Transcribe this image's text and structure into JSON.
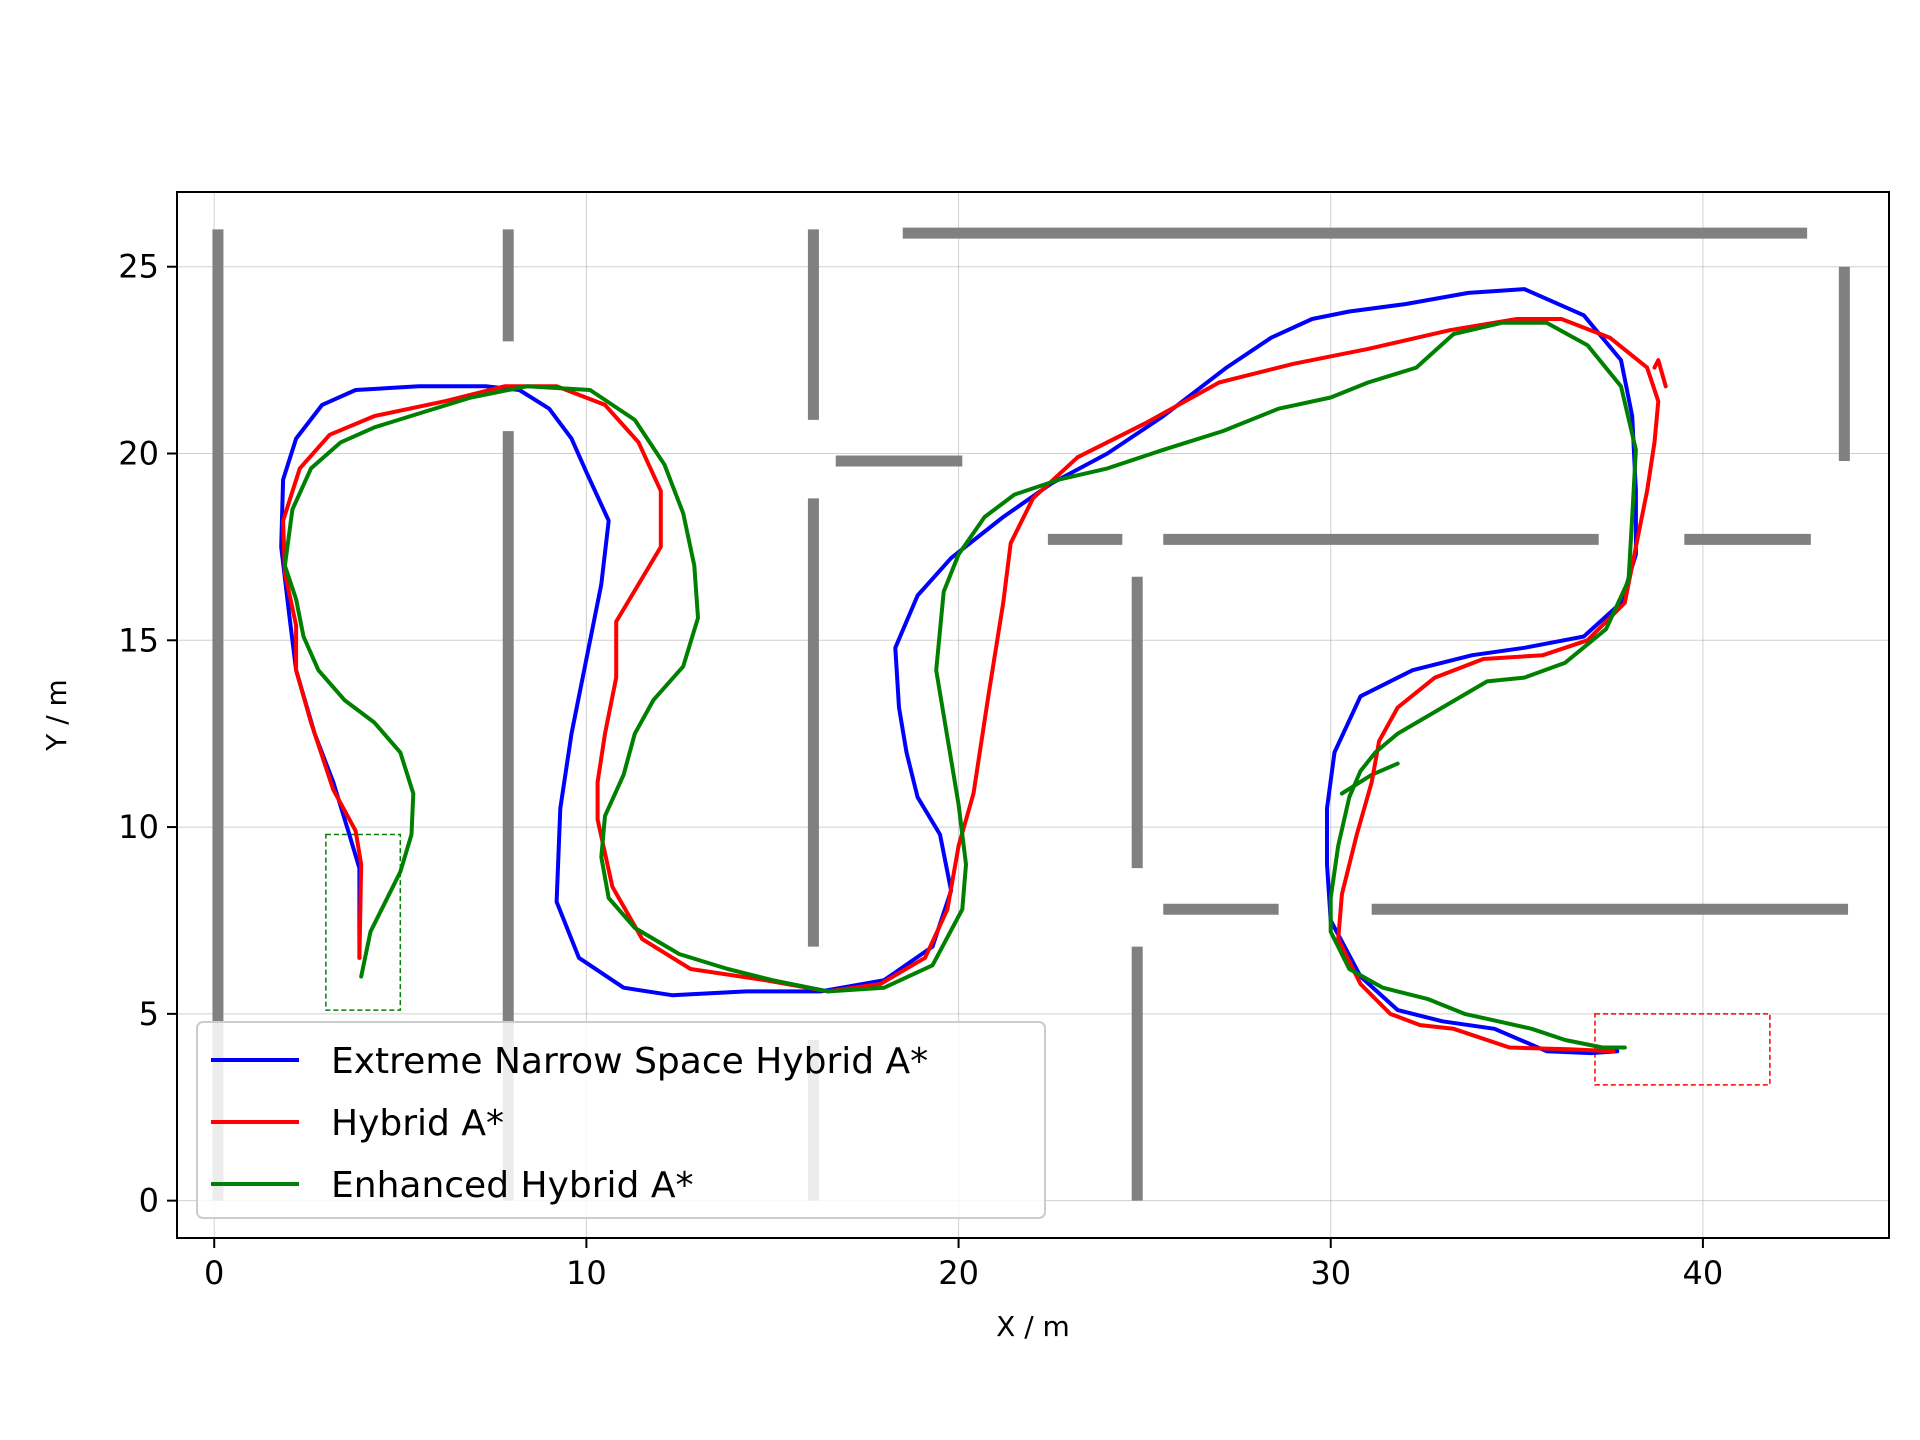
{
  "chart_data": {
    "type": "line",
    "title": "",
    "xlabel": "X / m",
    "ylabel": "Y / m",
    "xlim": [
      -1,
      45
    ],
    "ylim": [
      -1,
      27
    ],
    "xticks": [
      "0",
      "10",
      "20",
      "30",
      "40"
    ],
    "yticks": [
      "0",
      "5",
      "10",
      "15",
      "20",
      "25"
    ],
    "grid": true,
    "legend_position": "lower-left",
    "obstacle_color": "#808080",
    "walls": [
      [
        [
          0.1,
          0
        ],
        [
          0.1,
          26
        ]
      ],
      [
        [
          7.9,
          0
        ],
        [
          7.9,
          20.6
        ]
      ],
      [
        [
          7.9,
          23
        ],
        [
          7.9,
          26
        ]
      ],
      [
        [
          16.1,
          0
        ],
        [
          16.1,
          4.3
        ]
      ],
      [
        [
          16.1,
          6.8
        ],
        [
          16.1,
          18.8
        ]
      ],
      [
        [
          16.1,
          20.9
        ],
        [
          16.1,
          26
        ]
      ],
      [
        [
          18.5,
          25.9
        ],
        [
          42.8,
          25.9
        ]
      ],
      [
        [
          16.7,
          19.8
        ],
        [
          20.1,
          19.8
        ]
      ],
      [
        [
          22.4,
          17.7
        ],
        [
          24.4,
          17.7
        ]
      ],
      [
        [
          25.5,
          17.7
        ],
        [
          37.2,
          17.7
        ]
      ],
      [
        [
          39.5,
          17.7
        ],
        [
          42.9,
          17.7
        ]
      ],
      [
        [
          43.8,
          19.8
        ],
        [
          43.8,
          25
        ]
      ],
      [
        [
          24.8,
          8.9
        ],
        [
          24.8,
          16.7
        ]
      ],
      [
        [
          24.8,
          0
        ],
        [
          24.8,
          6.8
        ]
      ],
      [
        [
          25.5,
          7.8
        ],
        [
          28.6,
          7.8
        ]
      ],
      [
        [
          31.1,
          7.8
        ],
        [
          43.9,
          7.8
        ]
      ]
    ],
    "target_zones": [
      {
        "x": [
          3.0,
          5.0
        ],
        "y": [
          5.1,
          9.8
        ],
        "color": "#008000"
      },
      {
        "x": [
          37.1,
          41.8
        ],
        "y": [
          3.1,
          5.0
        ],
        "color": "#ff0000"
      }
    ],
    "series": [
      {
        "name": "Extreme Narrow Space Hybrid A*",
        "color": "#0000ff",
        "points": [
          [
            3.9,
            6.5
          ],
          [
            3.9,
            8.9
          ],
          [
            3.6,
            9.9
          ],
          [
            3.2,
            11.2
          ],
          [
            2.7,
            12.5
          ],
          [
            2.2,
            14.2
          ],
          [
            2.0,
            15.8
          ],
          [
            1.8,
            17.5
          ],
          [
            1.85,
            19.3
          ],
          [
            2.2,
            20.4
          ],
          [
            2.9,
            21.3
          ],
          [
            3.8,
            21.7
          ],
          [
            5.5,
            21.8
          ],
          [
            7.3,
            21.8
          ],
          [
            8.2,
            21.7
          ],
          [
            9.0,
            21.2
          ],
          [
            9.6,
            20.4
          ],
          [
            10.0,
            19.5
          ],
          [
            10.6,
            18.2
          ],
          [
            10.4,
            16.5
          ],
          [
            10.0,
            14.5
          ],
          [
            9.6,
            12.5
          ],
          [
            9.3,
            10.5
          ],
          [
            9.2,
            8.0
          ],
          [
            9.8,
            6.5
          ],
          [
            11.0,
            5.7
          ],
          [
            12.3,
            5.5
          ],
          [
            14.3,
            5.6
          ],
          [
            16.3,
            5.6
          ],
          [
            18.0,
            5.9
          ],
          [
            19.3,
            6.8
          ],
          [
            19.8,
            8.3
          ],
          [
            19.5,
            9.8
          ],
          [
            18.9,
            10.8
          ],
          [
            18.6,
            12.0
          ],
          [
            18.4,
            13.2
          ],
          [
            18.3,
            14.8
          ],
          [
            18.9,
            16.2
          ],
          [
            19.8,
            17.2
          ],
          [
            21.2,
            18.3
          ],
          [
            22.5,
            19.2
          ],
          [
            24.0,
            20.0
          ],
          [
            25.5,
            21.0
          ],
          [
            27.2,
            22.3
          ],
          [
            28.4,
            23.1
          ],
          [
            29.5,
            23.6
          ],
          [
            30.5,
            23.8
          ],
          [
            32.0,
            24.0
          ],
          [
            33.7,
            24.3
          ],
          [
            35.2,
            24.4
          ],
          [
            36.8,
            23.7
          ],
          [
            37.8,
            22.5
          ],
          [
            38.1,
            21.0
          ],
          [
            38.2,
            19.0
          ],
          [
            38.2,
            17.3
          ],
          [
            37.8,
            16.0
          ],
          [
            36.8,
            15.1
          ],
          [
            35.2,
            14.8
          ],
          [
            33.8,
            14.6
          ],
          [
            32.2,
            14.2
          ],
          [
            30.8,
            13.5
          ],
          [
            30.1,
            12.0
          ],
          [
            29.9,
            10.5
          ],
          [
            29.9,
            9.0
          ],
          [
            30.0,
            7.5
          ],
          [
            30.8,
            6.0
          ],
          [
            31.8,
            5.1
          ],
          [
            33.0,
            4.8
          ],
          [
            34.4,
            4.6
          ],
          [
            35.8,
            4.0
          ],
          [
            37.0,
            3.95
          ],
          [
            37.7,
            4.0
          ]
        ]
      },
      {
        "name": "Hybrid A*",
        "color": "#ff0000",
        "points": [
          [
            3.9,
            6.5
          ],
          [
            3.95,
            9.0
          ],
          [
            3.8,
            9.9
          ],
          [
            3.2,
            11.0
          ],
          [
            2.6,
            12.8
          ],
          [
            2.2,
            14.2
          ],
          [
            2.2,
            15.4
          ],
          [
            1.9,
            16.8
          ],
          [
            1.85,
            18.2
          ],
          [
            2.3,
            19.6
          ],
          [
            3.1,
            20.5
          ],
          [
            4.3,
            21.0
          ],
          [
            6.2,
            21.4
          ],
          [
            7.8,
            21.8
          ],
          [
            9.2,
            21.8
          ],
          [
            10.5,
            21.3
          ],
          [
            11.4,
            20.3
          ],
          [
            12.0,
            19.0
          ],
          [
            12.0,
            17.5
          ],
          [
            11.4,
            16.5
          ],
          [
            10.8,
            15.5
          ],
          [
            10.8,
            14.0
          ],
          [
            10.5,
            12.5
          ],
          [
            10.3,
            11.2
          ],
          [
            10.3,
            10.2
          ],
          [
            10.7,
            8.4
          ],
          [
            11.5,
            7.0
          ],
          [
            12.8,
            6.2
          ],
          [
            14.8,
            5.9
          ],
          [
            16.5,
            5.6
          ],
          [
            17.9,
            5.8
          ],
          [
            19.1,
            6.5
          ],
          [
            19.7,
            7.8
          ],
          [
            20.0,
            9.5
          ],
          [
            20.4,
            10.9
          ],
          [
            20.8,
            13.5
          ],
          [
            21.2,
            16.0
          ],
          [
            21.4,
            17.6
          ],
          [
            22.0,
            18.8
          ],
          [
            23.2,
            19.9
          ],
          [
            25.0,
            20.8
          ],
          [
            27.0,
            21.9
          ],
          [
            29.0,
            22.4
          ],
          [
            31.0,
            22.8
          ],
          [
            33.2,
            23.3
          ],
          [
            35.0,
            23.6
          ],
          [
            36.2,
            23.6
          ],
          [
            37.5,
            23.1
          ],
          [
            38.5,
            22.3
          ],
          [
            38.8,
            21.4
          ],
          [
            38.7,
            20.3
          ],
          [
            38.5,
            19.0
          ],
          [
            38.2,
            17.5
          ],
          [
            37.9,
            16.0
          ],
          [
            36.9,
            15.0
          ],
          [
            35.7,
            14.6
          ],
          [
            34.1,
            14.5
          ],
          [
            32.8,
            14.0
          ],
          [
            31.8,
            13.2
          ],
          [
            31.3,
            12.3
          ],
          [
            31.1,
            11.2
          ],
          [
            30.7,
            9.8
          ],
          [
            30.3,
            8.2
          ],
          [
            30.2,
            7.0
          ],
          [
            30.8,
            5.8
          ],
          [
            31.6,
            5.0
          ],
          [
            32.4,
            4.7
          ],
          [
            33.3,
            4.6
          ],
          [
            34.8,
            4.1
          ],
          [
            36.4,
            4.05
          ],
          [
            37.6,
            4.0
          ]
        ]
      },
      {
        "name": "Enhanced Hybrid A*",
        "color": "#008000",
        "points": [
          [
            3.95,
            6.0
          ],
          [
            4.2,
            7.2
          ],
          [
            4.6,
            8.0
          ],
          [
            5.0,
            8.8
          ],
          [
            5.3,
            9.8
          ],
          [
            5.35,
            10.9
          ],
          [
            5.0,
            12.0
          ],
          [
            4.3,
            12.8
          ],
          [
            3.5,
            13.4
          ],
          [
            2.8,
            14.2
          ],
          [
            2.4,
            15.1
          ],
          [
            2.2,
            16.1
          ],
          [
            1.9,
            17.0
          ],
          [
            2.1,
            18.5
          ],
          [
            2.6,
            19.6
          ],
          [
            3.4,
            20.3
          ],
          [
            4.3,
            20.7
          ],
          [
            5.6,
            21.1
          ],
          [
            6.9,
            21.5
          ],
          [
            8.4,
            21.8
          ],
          [
            10.1,
            21.7
          ],
          [
            11.3,
            20.9
          ],
          [
            12.1,
            19.7
          ],
          [
            12.6,
            18.4
          ],
          [
            12.9,
            17.0
          ],
          [
            13.0,
            15.6
          ],
          [
            12.6,
            14.3
          ],
          [
            11.8,
            13.4
          ],
          [
            11.3,
            12.5
          ],
          [
            11.0,
            11.4
          ],
          [
            10.5,
            10.3
          ],
          [
            10.4,
            9.2
          ],
          [
            10.6,
            8.1
          ],
          [
            11.3,
            7.3
          ],
          [
            12.5,
            6.6
          ],
          [
            13.8,
            6.2
          ],
          [
            15.0,
            5.9
          ],
          [
            16.5,
            5.6
          ],
          [
            18.0,
            5.7
          ],
          [
            19.3,
            6.3
          ],
          [
            20.1,
            7.8
          ],
          [
            20.2,
            9.0
          ],
          [
            20.0,
            10.6
          ],
          [
            19.7,
            12.4
          ],
          [
            19.4,
            14.2
          ],
          [
            19.6,
            16.3
          ],
          [
            20.0,
            17.3
          ],
          [
            20.7,
            18.3
          ],
          [
            21.5,
            18.9
          ],
          [
            22.7,
            19.3
          ],
          [
            24.0,
            19.6
          ],
          [
            25.5,
            20.1
          ],
          [
            27.1,
            20.6
          ],
          [
            28.6,
            21.2
          ],
          [
            30.0,
            21.5
          ],
          [
            31.0,
            21.9
          ],
          [
            32.3,
            22.3
          ],
          [
            33.3,
            23.2
          ],
          [
            34.6,
            23.5
          ],
          [
            35.8,
            23.5
          ],
          [
            36.9,
            22.9
          ],
          [
            37.8,
            21.8
          ],
          [
            38.2,
            20.1
          ],
          [
            38.1,
            18.3
          ],
          [
            38.0,
            16.6
          ],
          [
            37.4,
            15.3
          ],
          [
            36.3,
            14.4
          ],
          [
            35.2,
            14.0
          ],
          [
            34.2,
            13.9
          ],
          [
            33.0,
            13.2
          ],
          [
            31.8,
            12.5
          ],
          [
            31.2,
            12.0
          ],
          [
            30.8,
            11.5
          ],
          [
            30.5,
            10.8
          ],
          [
            30.2,
            9.5
          ],
          [
            30.0,
            8.1
          ],
          [
            30.0,
            7.2
          ],
          [
            30.5,
            6.2
          ],
          [
            31.4,
            5.7
          ],
          [
            32.6,
            5.4
          ],
          [
            33.6,
            5.0
          ],
          [
            34.5,
            4.8
          ],
          [
            35.4,
            4.6
          ],
          [
            36.3,
            4.3
          ],
          [
            37.3,
            4.1
          ],
          [
            37.9,
            4.1
          ]
        ]
      }
    ],
    "reverse_spurs": [
      {
        "color": "#008000",
        "points": [
          [
            30.3,
            10.9
          ],
          [
            31.1,
            11.4
          ],
          [
            31.8,
            11.7
          ]
        ]
      },
      {
        "color": "#ff0000",
        "points": [
          [
            38.7,
            22.3
          ],
          [
            38.8,
            22.5
          ],
          [
            39.0,
            21.8
          ]
        ]
      }
    ]
  }
}
